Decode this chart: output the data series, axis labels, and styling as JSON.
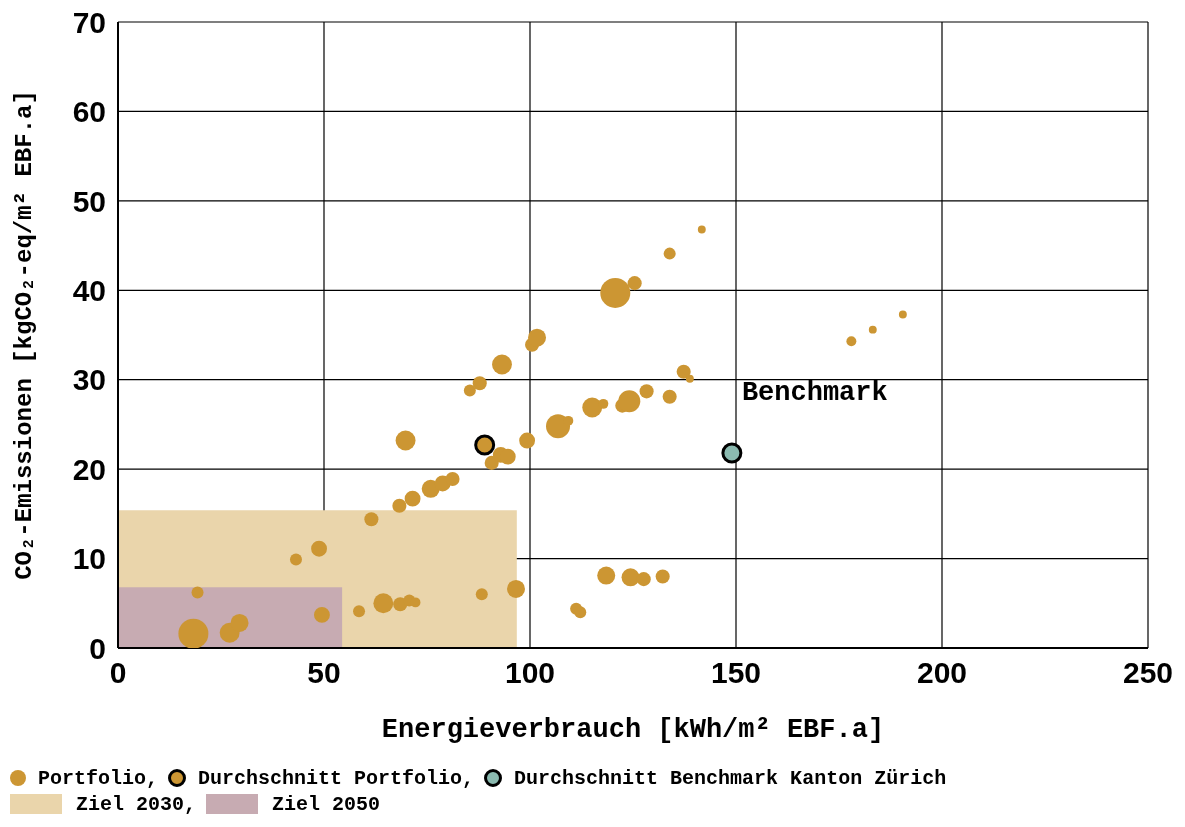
{
  "chart_data": {
    "type": "bubble",
    "xlabel": "Energieverbrauch [kWh/m² EBF.a]",
    "ylabel": "CO₂-Emissionen [kgCO₂-eq/m² EBF.a]",
    "xlim": [
      0,
      250
    ],
    "xticks": [
      0,
      50,
      100,
      150,
      200,
      250
    ],
    "ylim": [
      0,
      70
    ],
    "yticks": [
      0,
      10,
      20,
      30,
      40,
      50,
      60,
      70
    ],
    "grid": true,
    "legend": "bottom",
    "annotations": [
      "Benchmark"
    ],
    "series": [
      {
        "name": "Ziel 2030,",
        "type": "area",
        "color": "#ead5ab",
        "x": [
          0,
          96.8
        ],
        "values": [
          15.4,
          15.4
        ]
      },
      {
        "name": "Ziel 2050",
        "type": "area",
        "color": "#c7abb2",
        "x": [
          0,
          54.4
        ],
        "values": [
          6.8,
          6.8
        ]
      },
      {
        "name": "Portfolio,",
        "color": "#cc9633",
        "x": [
          18.3,
          19.3,
          27.1,
          29.5,
          43.2,
          48.8,
          49.5,
          58.5,
          61.5,
          64.4,
          68.5,
          70.7,
          72.2,
          68.3,
          71.5,
          75.9,
          78.8,
          81.2,
          69.8,
          85.4,
          87.8,
          93.2,
          100.5,
          101.7,
          90.7,
          92.9,
          94.6,
          99.3,
          106.8,
          109.3,
          115.1,
          117.8,
          122.4,
          124.1,
          128.3,
          133.9,
          137.3,
          138.8,
          88.3,
          96.6,
          111.2,
          112.2,
          118.5,
          124.4,
          127.6,
          132.2,
          120.7,
          125.4,
          133.9,
          141.7,
          178.0,
          183.2,
          190.5
        ],
        "values": [
          1.6,
          6.2,
          1.7,
          2.8,
          9.9,
          11.1,
          3.7,
          4.1,
          14.4,
          5.0,
          4.9,
          5.3,
          5.1,
          15.9,
          16.7,
          17.8,
          18.4,
          18.9,
          23.2,
          28.8,
          29.6,
          31.7,
          33.9,
          34.7,
          20.7,
          21.6,
          21.4,
          23.2,
          24.8,
          25.4,
          26.9,
          27.3,
          27.1,
          27.6,
          28.7,
          28.1,
          30.9,
          30.1,
          6.0,
          6.6,
          4.4,
          4.0,
          8.1,
          7.9,
          7.7,
          8.0,
          39.7,
          40.8,
          44.1,
          46.8,
          34.3,
          35.6,
          37.3
        ],
        "sizes": [
          1,
          0.16,
          0.44,
          0.36,
          0.16,
          0.28,
          0.28,
          0.16,
          0.22,
          0.44,
          0.22,
          0.16,
          0.11,
          0.22,
          0.28,
          0.36,
          0.28,
          0.22,
          0.44,
          0.16,
          0.22,
          0.44,
          0.22,
          0.36,
          0.22,
          0.28,
          0.28,
          0.28,
          0.64,
          0.11,
          0.44,
          0.11,
          0.22,
          0.54,
          0.22,
          0.22,
          0.22,
          0.07,
          0.16,
          0.36,
          0.16,
          0.16,
          0.36,
          0.36,
          0.22,
          0.22,
          1,
          0.22,
          0.16,
          0.07,
          0.11,
          0.07,
          0.07
        ]
      },
      {
        "name": "Durchschnitt Portfolio,",
        "type": "scatter",
        "color": "#cc9633",
        "x": [
          89.0
        ],
        "values": [
          22.7
        ]
      },
      {
        "name": "Durchschnitt Benchmark Kanton Zürich",
        "type": "scatter",
        "color": "#8bbab0",
        "x": [
          149.0
        ],
        "values": [
          21.8
        ]
      }
    ]
  }
}
